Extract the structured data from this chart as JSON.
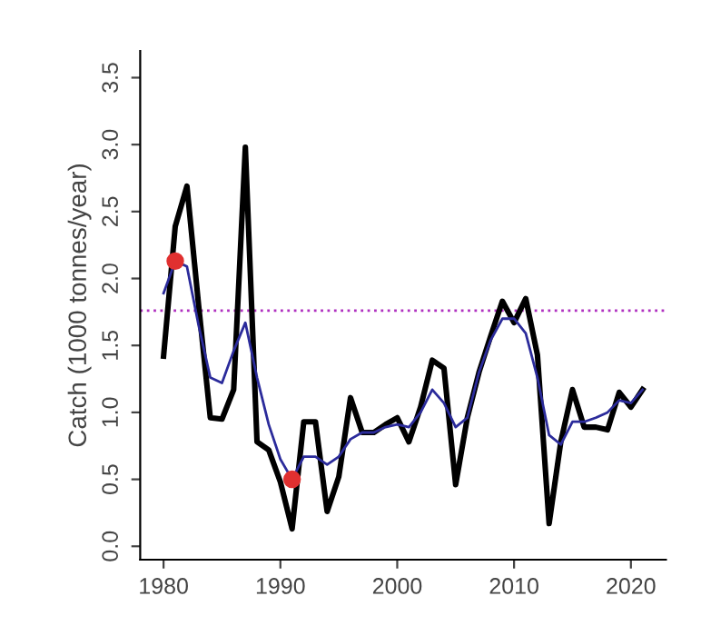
{
  "chart_data": {
    "type": "line",
    "ylabel": "Catch (1000 tonnes/year)",
    "xlim": [
      1978,
      2023
    ],
    "xticks": [
      1980,
      1990,
      2000,
      2010,
      2020
    ],
    "ylim": [
      -0.1,
      3.7
    ],
    "yticks": [
      {
        "value": 0,
        "label": "0.0"
      },
      {
        "value": 0.5,
        "label": "0.5"
      },
      {
        "value": 1,
        "label": "1.0"
      },
      {
        "value": 1.5,
        "label": "1.5"
      },
      {
        "value": 2,
        "label": "2.0"
      },
      {
        "value": 2.5,
        "label": "2.5"
      },
      {
        "value": 3,
        "label": "3.0"
      },
      {
        "value": 3.5,
        "label": "3.5"
      }
    ],
    "grid": false,
    "legend": false,
    "series": [
      {
        "color": "#000000",
        "x": [
          1980,
          1981,
          1982,
          1983,
          1984,
          1985,
          1986,
          1987,
          1988,
          1989,
          1990,
          1991,
          1992,
          1993,
          1994,
          1995,
          1996,
          1997,
          1998,
          1999,
          2000,
          2001,
          2002,
          2003,
          2004,
          2005,
          2006,
          2007,
          2008,
          2009,
          2010,
          2011,
          2012,
          2013,
          2014,
          2015,
          2016,
          2017,
          2018,
          2019,
          2020,
          2021
        ],
        "values": [
          1.42,
          2.39,
          2.69,
          1.8,
          0.96,
          0.95,
          1.17,
          2.98,
          0.78,
          0.72,
          0.48,
          0.13,
          0.93,
          0.93,
          0.26,
          0.52,
          1.11,
          0.85,
          0.85,
          0.91,
          0.96,
          0.78,
          1.04,
          1.39,
          1.33,
          0.46,
          0.96,
          1.3,
          1.57,
          1.83,
          1.67,
          1.85,
          1.43,
          0.17,
          0.78,
          1.17,
          0.89,
          0.89,
          0.87,
          1.15,
          1.04,
          1.17
        ]
      },
      {
        "color": "#2b2b9b",
        "x": [
          1980,
          1981,
          1982,
          1983,
          1984,
          1985,
          1986,
          1987,
          1988,
          1989,
          1990,
          1991,
          1992,
          1993,
          1994,
          1995,
          1996,
          1997,
          1998,
          1999,
          2000,
          2001,
          2002,
          2003,
          2004,
          2005,
          2006,
          2007,
          2008,
          2009,
          2010,
          2011,
          2012,
          2013,
          2014,
          2015,
          2016,
          2017,
          2018,
          2019,
          2020,
          2021
        ],
        "values": [
          1.89,
          2.13,
          2.09,
          1.65,
          1.26,
          1.22,
          1.46,
          1.67,
          1.26,
          0.91,
          0.65,
          0.5,
          0.67,
          0.67,
          0.61,
          0.67,
          0.8,
          0.85,
          0.85,
          0.89,
          0.91,
          0.89,
          1.0,
          1.17,
          1.07,
          0.89,
          0.96,
          1.3,
          1.54,
          1.7,
          1.7,
          1.59,
          1.26,
          0.83,
          0.76,
          0.93,
          0.93,
          0.96,
          1.0,
          1.09,
          1.07,
          1.17
        ]
      },
      {
        "type": "scatter",
        "color": "#e03030",
        "marker": "circle",
        "x": [
          1981,
          1991
        ],
        "values": [
          2.13,
          0.5
        ]
      }
    ],
    "ref_lines": [
      {
        "axis": "y",
        "value": 1.76,
        "color": "#b030c0",
        "line_style": "dotted"
      }
    ]
  }
}
